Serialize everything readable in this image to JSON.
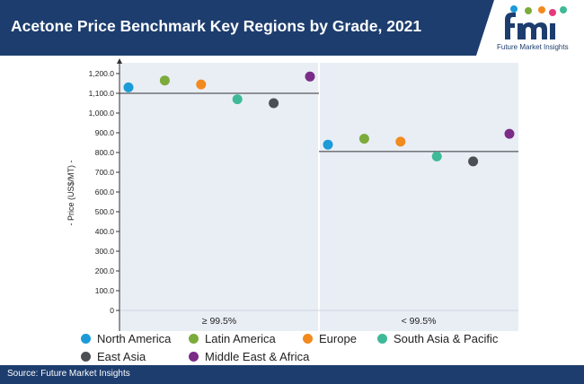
{
  "header": {
    "title": "Acetone Price Benchmark Key Regions by Grade, 2021"
  },
  "logo": {
    "caption": "Future Market Insights"
  },
  "footer": {
    "source": "Source: Future Market Insights"
  },
  "colors": {
    "header_bg": "#1d3d6e",
    "panel_bg": "#e9eef5",
    "North America": "#1b9bd7",
    "Latin America": "#7cab3c",
    "Europe": "#f28a1e",
    "South Asia & Pacific": "#3fba98",
    "East Asia": "#4b4f54",
    "Middle East & Africa": "#7a2c87"
  },
  "chart_data": {
    "type": "scatter",
    "title": "",
    "xlabel": "",
    "ylabel": "- Price (US$/MT) -",
    "ylim": [
      0,
      1200
    ],
    "yticks": [
      "0",
      "100.0",
      "200.0",
      "300.0",
      "400.0",
      "500.0",
      "600.0",
      "700.0",
      "800.0",
      "900.0",
      "1,000.0",
      "1,100.0",
      "1,200.0"
    ],
    "ytick_values": [
      0,
      100,
      200,
      300,
      400,
      500,
      600,
      700,
      800,
      900,
      1000,
      1100,
      1200
    ],
    "categories": [
      "≥ 99.5%",
      "< 99.5%"
    ],
    "legend_position": "bottom",
    "grid": false,
    "series": [
      {
        "name": "North America",
        "values": [
          1130,
          840
        ]
      },
      {
        "name": "Latin America",
        "values": [
          1165,
          870
        ]
      },
      {
        "name": "Europe",
        "values": [
          1145,
          855
        ]
      },
      {
        "name": "South Asia & Pacific",
        "values": [
          1070,
          780
        ]
      },
      {
        "name": "East Asia",
        "values": [
          1050,
          755
        ]
      },
      {
        "name": "Middle East & Africa",
        "values": [
          1185,
          895
        ]
      }
    ],
    "reference_lines": [
      1100,
      805
    ]
  }
}
